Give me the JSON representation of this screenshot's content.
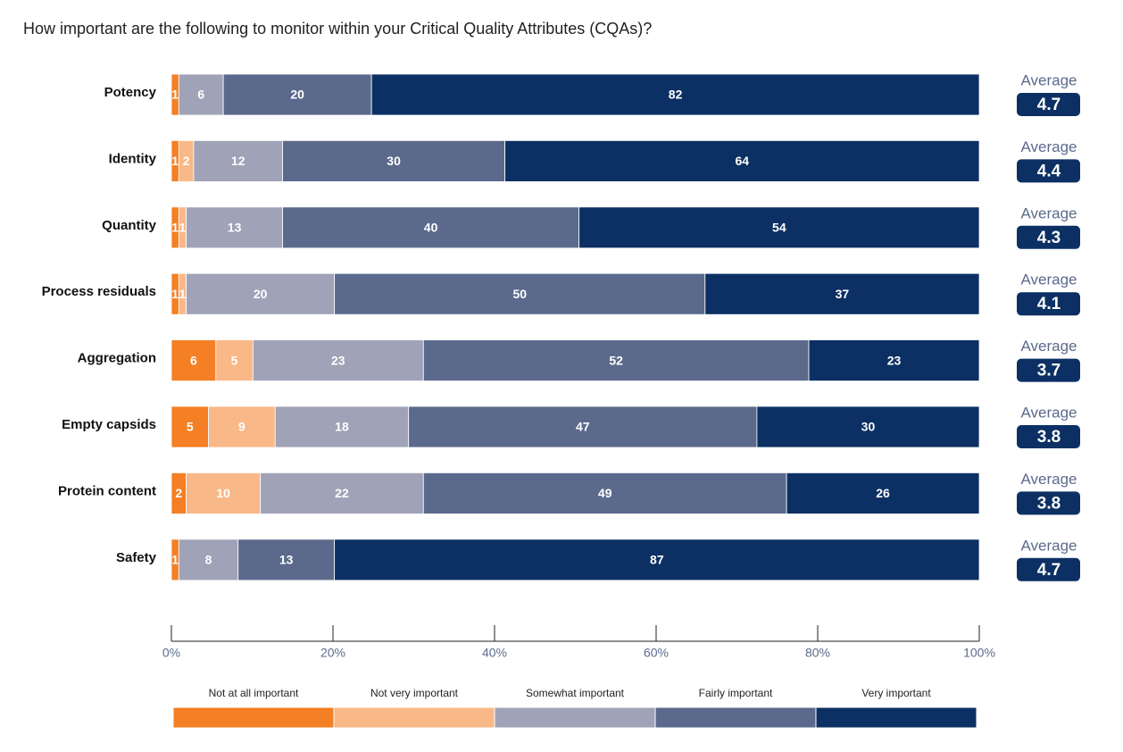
{
  "chart_data": {
    "type": "bar",
    "orientation": "horizontal",
    "stacking": "percent",
    "title": "How important are the following to monitor within your Critical Quality Attributes (CQAs)?",
    "categories": [
      "Potency",
      "Identity",
      "Quantity",
      "Process residuals",
      "Aggregation",
      "Empty capsids",
      "Protein content",
      "Safety"
    ],
    "series": [
      {
        "name": "Not at all important",
        "color": "#f47f24",
        "values": [
          1,
          1,
          1,
          1,
          6,
          5,
          2,
          1
        ]
      },
      {
        "name": "Not very important",
        "color": "#f9b887",
        "values": [
          null,
          2,
          1,
          1,
          5,
          9,
          10,
          null
        ]
      },
      {
        "name": "Somewhat important",
        "color": "#a0a3b8",
        "values": [
          6,
          12,
          13,
          20,
          23,
          18,
          22,
          8
        ]
      },
      {
        "name": "Fairly important",
        "color": "#5b6a8c",
        "values": [
          20,
          30,
          40,
          50,
          52,
          47,
          49,
          13
        ]
      },
      {
        "name": "Very important",
        "color": "#0c3063",
        "values": [
          82,
          64,
          54,
          37,
          23,
          30,
          26,
          87
        ]
      }
    ],
    "average_label": "Average",
    "averages": [
      4.7,
      4.4,
      4.3,
      4.1,
      3.7,
      3.8,
      3.8,
      4.7
    ],
    "xlim": [
      0,
      100
    ],
    "xticks": [
      {
        "value": 0,
        "label": "0%"
      },
      {
        "value": 20,
        "label": "20%"
      },
      {
        "value": 40,
        "label": "40%"
      },
      {
        "value": 60,
        "label": "60%"
      },
      {
        "value": 80,
        "label": "80%"
      },
      {
        "value": 100,
        "label": "100%"
      }
    ]
  }
}
